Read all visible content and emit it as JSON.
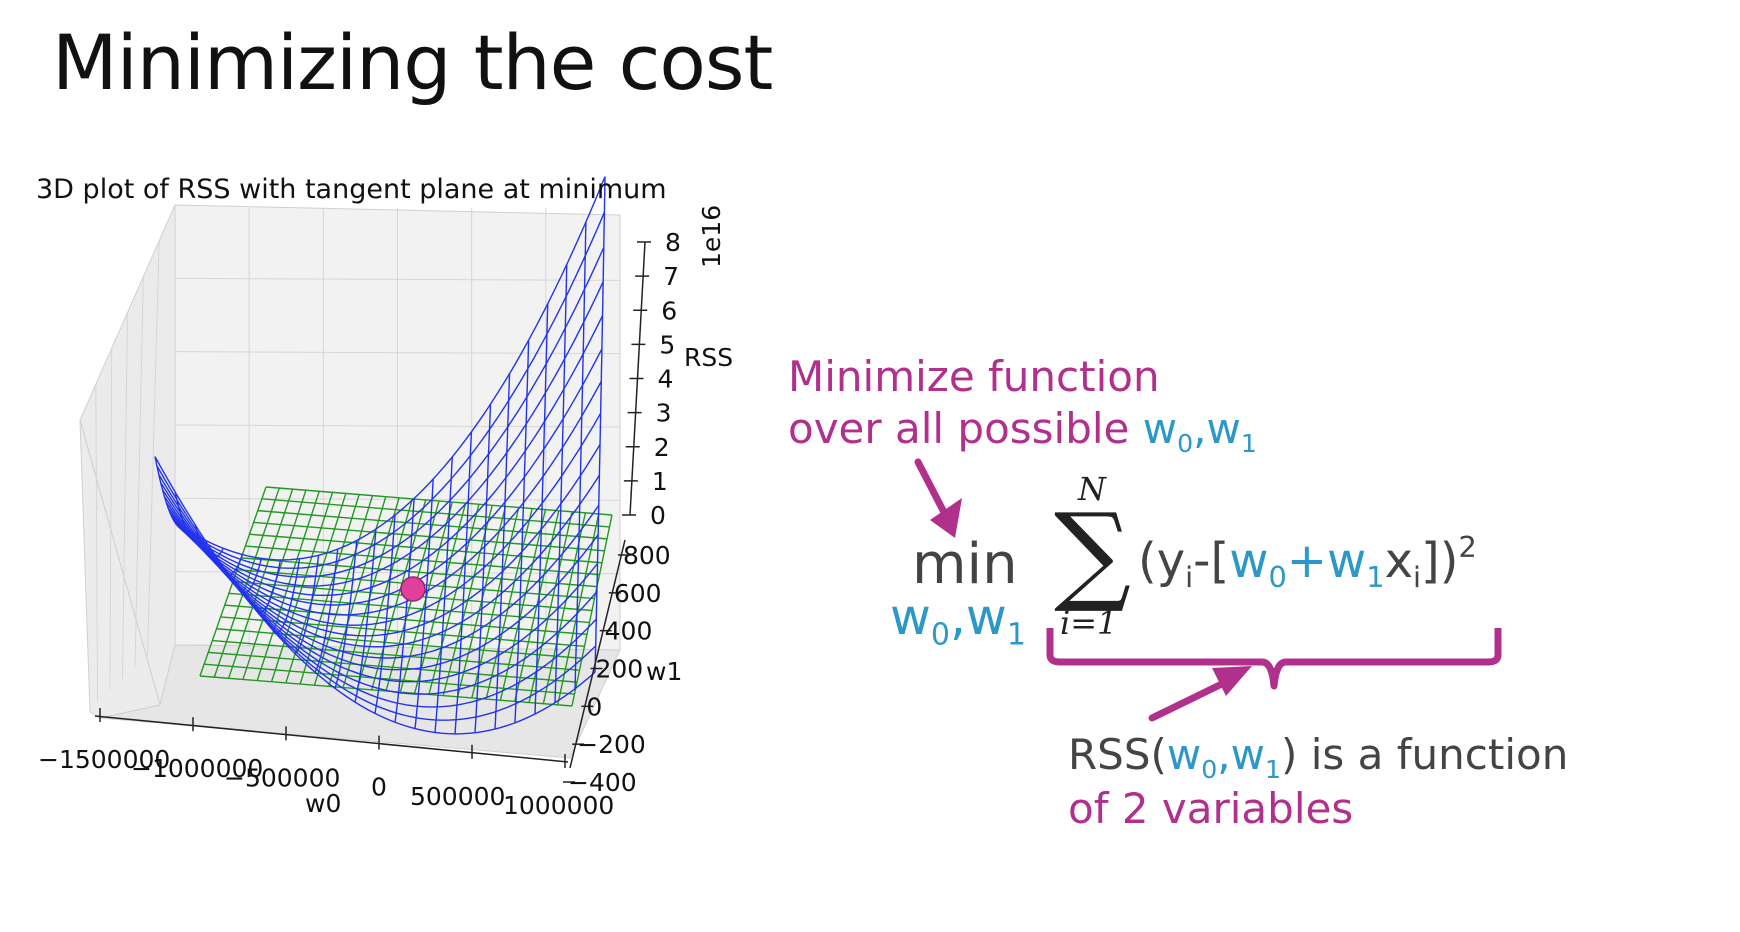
{
  "slide": {
    "title": "Minimizing the cost"
  },
  "chart_data": {
    "type": "surface3d",
    "title": "3D plot of RSS with tangent plane at minimum",
    "xlabel": "w0",
    "ylabel": "w1",
    "zlabel": "RSS",
    "z_offset_label": "1e16",
    "x_ticks": [
      "−1500000",
      "−1000000",
      "−500000",
      "0",
      "500000",
      "1000000"
    ],
    "y_ticks": [
      "800",
      "600",
      "400",
      "200",
      "0",
      "−200",
      "−400"
    ],
    "z_ticks": [
      "8",
      "7",
      "6",
      "5",
      "4",
      "3",
      "2",
      "1",
      "0"
    ],
    "surface_color": "#2233ee",
    "plane_color": "#229922",
    "minimum_marker_color": "#e0409a",
    "grid": true
  },
  "annotations": {
    "minimize_line1": "Minimize function",
    "minimize_line2_prefix": "over all possible ",
    "w0_symbol": "w",
    "w1_symbol": "w",
    "sub0": "0",
    "sub1": "1",
    "comma": ",",
    "min_word": "min",
    "sum_upper": "N",
    "sum_lower": "i=1",
    "term_open": "(y",
    "sub_i": "i",
    "term_minus": "-[",
    "plus": "+",
    "x_symbol": "x",
    "term_close": "])",
    "sup2": "2",
    "rss_prefix": "RSS(",
    "rss_suffix": ") is a function",
    "rss_line2": "of 2 variables"
  },
  "colors": {
    "accent_magenta": "#b0308c",
    "accent_blue": "#2c97c9"
  }
}
